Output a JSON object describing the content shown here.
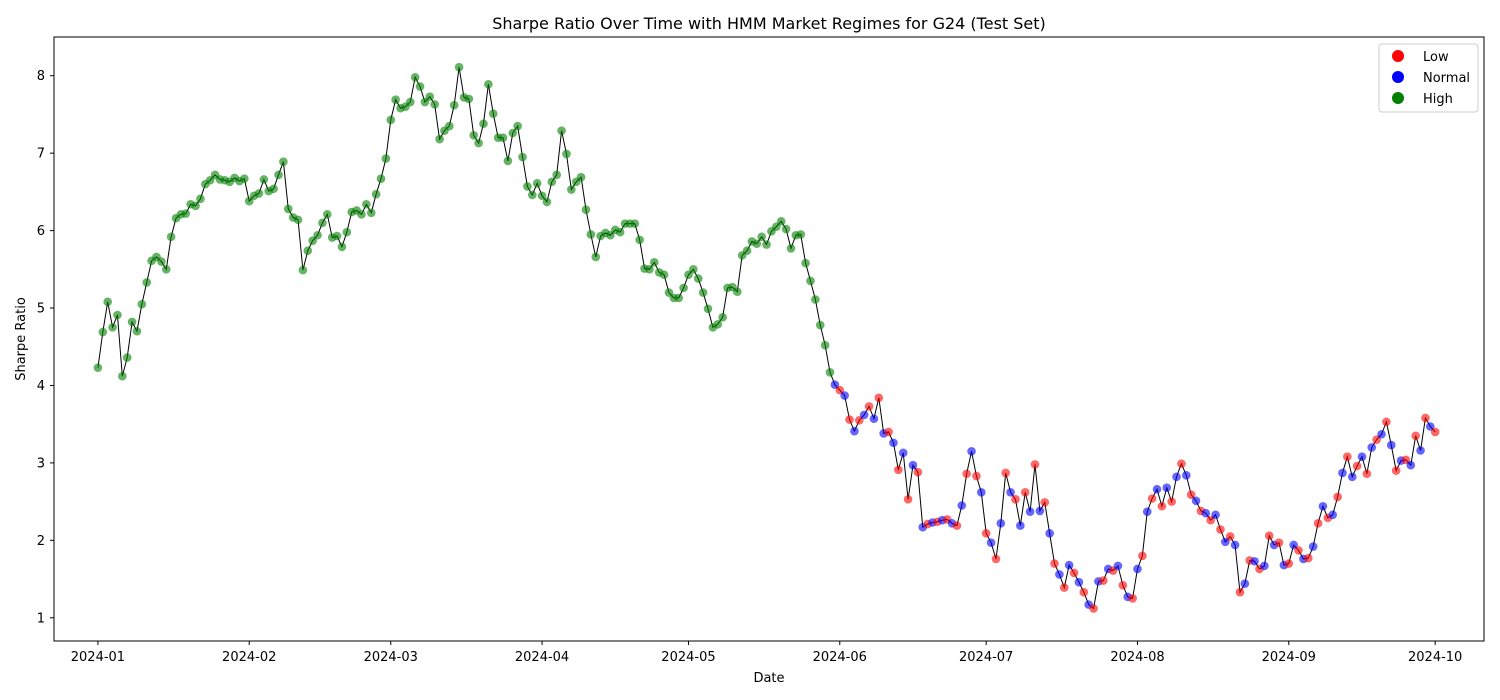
{
  "chart_data": {
    "type": "scatter",
    "title": "Sharpe Ratio Over Time with HMM Market Regimes for G24 (Test Set)",
    "xlabel": "Date",
    "ylabel": "Sharpe Ratio",
    "xlim": [
      "2023-12-23",
      "2024-10-11"
    ],
    "ylim": [
      0.7,
      8.5
    ],
    "xticks": [
      "2024-01",
      "2024-02",
      "2024-03",
      "2024-04",
      "2024-05",
      "2024-06",
      "2024-07",
      "2024-08",
      "2024-09",
      "2024-10"
    ],
    "yticks": [
      1,
      2,
      3,
      4,
      5,
      6,
      7,
      8
    ],
    "grid": false,
    "legend_position": "top-right",
    "legend": [
      {
        "label": "Low",
        "color": "#ff0000"
      },
      {
        "label": "Normal",
        "color": "#0000ff"
      },
      {
        "label": "High",
        "color": "#008000"
      }
    ],
    "line_color": "#000000",
    "regime_colors": {
      "L": "#ff0000",
      "N": "#0000ff",
      "H": "#008000"
    },
    "points": [
      [
        "2024-01-01",
        4.23,
        "H"
      ],
      [
        "2024-01-02",
        4.69,
        "H"
      ],
      [
        "2024-01-03",
        5.08,
        "H"
      ],
      [
        "2024-01-04",
        4.75,
        "H"
      ],
      [
        "2024-01-05",
        4.91,
        "H"
      ],
      [
        "2024-01-06",
        4.12,
        "H"
      ],
      [
        "2024-01-07",
        4.36,
        "H"
      ],
      [
        "2024-01-08",
        4.82,
        "H"
      ],
      [
        "2024-01-09",
        4.7,
        "H"
      ],
      [
        "2024-01-10",
        5.05,
        "H"
      ],
      [
        "2024-01-11",
        5.33,
        "H"
      ],
      [
        "2024-01-12",
        5.61,
        "H"
      ],
      [
        "2024-01-13",
        5.66,
        "H"
      ],
      [
        "2024-01-14",
        5.6,
        "H"
      ],
      [
        "2024-01-15",
        5.5,
        "H"
      ],
      [
        "2024-01-16",
        5.92,
        "H"
      ],
      [
        "2024-01-17",
        6.16,
        "H"
      ],
      [
        "2024-01-18",
        6.21,
        "H"
      ],
      [
        "2024-01-19",
        6.22,
        "H"
      ],
      [
        "2024-01-20",
        6.34,
        "H"
      ],
      [
        "2024-01-21",
        6.32,
        "H"
      ],
      [
        "2024-01-22",
        6.41,
        "H"
      ],
      [
        "2024-01-23",
        6.6,
        "H"
      ],
      [
        "2024-01-24",
        6.65,
        "H"
      ],
      [
        "2024-01-25",
        6.72,
        "H"
      ],
      [
        "2024-01-26",
        6.66,
        "H"
      ],
      [
        "2024-01-27",
        6.65,
        "H"
      ],
      [
        "2024-01-28",
        6.63,
        "H"
      ],
      [
        "2024-01-29",
        6.68,
        "H"
      ],
      [
        "2024-01-30",
        6.64,
        "H"
      ],
      [
        "2024-01-31",
        6.67,
        "H"
      ],
      [
        "2024-02-01",
        6.38,
        "H"
      ],
      [
        "2024-02-02",
        6.45,
        "H"
      ],
      [
        "2024-02-03",
        6.48,
        "H"
      ],
      [
        "2024-02-04",
        6.66,
        "H"
      ],
      [
        "2024-02-05",
        6.51,
        "H"
      ],
      [
        "2024-02-06",
        6.54,
        "H"
      ],
      [
        "2024-02-07",
        6.72,
        "H"
      ],
      [
        "2024-02-08",
        6.89,
        "H"
      ],
      [
        "2024-02-09",
        6.28,
        "H"
      ],
      [
        "2024-02-10",
        6.17,
        "H"
      ],
      [
        "2024-02-11",
        6.14,
        "H"
      ],
      [
        "2024-02-12",
        5.49,
        "H"
      ],
      [
        "2024-02-13",
        5.74,
        "H"
      ],
      [
        "2024-02-14",
        5.87,
        "H"
      ],
      [
        "2024-02-15",
        5.94,
        "H"
      ],
      [
        "2024-02-16",
        6.1,
        "H"
      ],
      [
        "2024-02-17",
        6.21,
        "H"
      ],
      [
        "2024-02-18",
        5.91,
        "H"
      ],
      [
        "2024-02-19",
        5.93,
        "H"
      ],
      [
        "2024-02-20",
        5.79,
        "H"
      ],
      [
        "2024-02-21",
        5.98,
        "H"
      ],
      [
        "2024-02-22",
        6.24,
        "H"
      ],
      [
        "2024-02-23",
        6.26,
        "H"
      ],
      [
        "2024-02-24",
        6.21,
        "H"
      ],
      [
        "2024-02-25",
        6.34,
        "H"
      ],
      [
        "2024-02-26",
        6.23,
        "H"
      ],
      [
        "2024-02-27",
        6.47,
        "H"
      ],
      [
        "2024-02-28",
        6.67,
        "H"
      ],
      [
        "2024-02-29",
        6.93,
        "H"
      ],
      [
        "2024-03-01",
        7.43,
        "H"
      ],
      [
        "2024-03-02",
        7.69,
        "H"
      ],
      [
        "2024-03-03",
        7.58,
        "H"
      ],
      [
        "2024-03-04",
        7.6,
        "H"
      ],
      [
        "2024-03-05",
        7.66,
        "H"
      ],
      [
        "2024-03-06",
        7.98,
        "H"
      ],
      [
        "2024-03-07",
        7.86,
        "H"
      ],
      [
        "2024-03-08",
        7.66,
        "H"
      ],
      [
        "2024-03-09",
        7.73,
        "H"
      ],
      [
        "2024-03-10",
        7.63,
        "H"
      ],
      [
        "2024-03-11",
        7.18,
        "H"
      ],
      [
        "2024-03-12",
        7.29,
        "H"
      ],
      [
        "2024-03-13",
        7.35,
        "H"
      ],
      [
        "2024-03-14",
        7.62,
        "H"
      ],
      [
        "2024-03-15",
        8.11,
        "H"
      ],
      [
        "2024-03-16",
        7.72,
        "H"
      ],
      [
        "2024-03-17",
        7.7,
        "H"
      ],
      [
        "2024-03-18",
        7.23,
        "H"
      ],
      [
        "2024-03-19",
        7.13,
        "H"
      ],
      [
        "2024-03-20",
        7.38,
        "H"
      ],
      [
        "2024-03-21",
        7.89,
        "H"
      ],
      [
        "2024-03-22",
        7.51,
        "H"
      ],
      [
        "2024-03-23",
        7.2,
        "H"
      ],
      [
        "2024-03-24",
        7.2,
        "H"
      ],
      [
        "2024-03-25",
        6.9,
        "H"
      ],
      [
        "2024-03-26",
        7.26,
        "H"
      ],
      [
        "2024-03-27",
        7.35,
        "H"
      ],
      [
        "2024-03-28",
        6.95,
        "H"
      ],
      [
        "2024-03-29",
        6.57,
        "H"
      ],
      [
        "2024-03-30",
        6.46,
        "H"
      ],
      [
        "2024-03-31",
        6.61,
        "H"
      ],
      [
        "2024-04-01",
        6.45,
        "H"
      ],
      [
        "2024-04-02",
        6.37,
        "H"
      ],
      [
        "2024-04-03",
        6.63,
        "H"
      ],
      [
        "2024-04-04",
        6.72,
        "H"
      ],
      [
        "2024-04-05",
        7.29,
        "H"
      ],
      [
        "2024-04-06",
        6.99,
        "H"
      ],
      [
        "2024-04-07",
        6.53,
        "H"
      ],
      [
        "2024-04-08",
        6.63,
        "H"
      ],
      [
        "2024-04-09",
        6.69,
        "H"
      ],
      [
        "2024-04-10",
        6.27,
        "H"
      ],
      [
        "2024-04-11",
        5.95,
        "H"
      ],
      [
        "2024-04-12",
        5.66,
        "H"
      ],
      [
        "2024-04-13",
        5.93,
        "H"
      ],
      [
        "2024-04-14",
        5.97,
        "H"
      ],
      [
        "2024-04-15",
        5.94,
        "H"
      ],
      [
        "2024-04-16",
        6.01,
        "H"
      ],
      [
        "2024-04-17",
        5.98,
        "H"
      ],
      [
        "2024-04-18",
        6.09,
        "H"
      ],
      [
        "2024-04-19",
        6.09,
        "H"
      ],
      [
        "2024-04-20",
        6.09,
        "H"
      ],
      [
        "2024-04-21",
        5.88,
        "H"
      ],
      [
        "2024-04-22",
        5.51,
        "H"
      ],
      [
        "2024-04-23",
        5.5,
        "H"
      ],
      [
        "2024-04-24",
        5.59,
        "H"
      ],
      [
        "2024-04-25",
        5.46,
        "H"
      ],
      [
        "2024-04-26",
        5.43,
        "H"
      ],
      [
        "2024-04-27",
        5.2,
        "H"
      ],
      [
        "2024-04-28",
        5.13,
        "H"
      ],
      [
        "2024-04-29",
        5.13,
        "H"
      ],
      [
        "2024-04-30",
        5.26,
        "H"
      ],
      [
        "2024-05-01",
        5.43,
        "H"
      ],
      [
        "2024-05-02",
        5.5,
        "H"
      ],
      [
        "2024-05-03",
        5.38,
        "H"
      ],
      [
        "2024-05-04",
        5.2,
        "H"
      ],
      [
        "2024-05-05",
        4.99,
        "H"
      ],
      [
        "2024-05-06",
        4.75,
        "H"
      ],
      [
        "2024-05-07",
        4.79,
        "H"
      ],
      [
        "2024-05-08",
        4.88,
        "H"
      ],
      [
        "2024-05-09",
        5.26,
        "H"
      ],
      [
        "2024-05-10",
        5.27,
        "H"
      ],
      [
        "2024-05-11",
        5.21,
        "H"
      ],
      [
        "2024-05-12",
        5.68,
        "H"
      ],
      [
        "2024-05-13",
        5.74,
        "H"
      ],
      [
        "2024-05-14",
        5.86,
        "H"
      ],
      [
        "2024-05-15",
        5.83,
        "H"
      ],
      [
        "2024-05-16",
        5.92,
        "H"
      ],
      [
        "2024-05-17",
        5.82,
        "H"
      ],
      [
        "2024-05-18",
        5.99,
        "H"
      ],
      [
        "2024-05-19",
        6.05,
        "H"
      ],
      [
        "2024-05-20",
        6.12,
        "H"
      ],
      [
        "2024-05-21",
        6.02,
        "H"
      ],
      [
        "2024-05-22",
        5.77,
        "H"
      ],
      [
        "2024-05-23",
        5.94,
        "H"
      ],
      [
        "2024-05-24",
        5.95,
        "H"
      ],
      [
        "2024-05-25",
        5.58,
        "H"
      ],
      [
        "2024-05-26",
        5.35,
        "H"
      ],
      [
        "2024-05-27",
        5.11,
        "H"
      ],
      [
        "2024-05-28",
        4.78,
        "H"
      ],
      [
        "2024-05-29",
        4.52,
        "H"
      ],
      [
        "2024-05-30",
        4.17,
        "H"
      ],
      [
        "2024-05-31",
        4.01,
        "N"
      ],
      [
        "2024-06-01",
        3.94,
        "L"
      ],
      [
        "2024-06-02",
        3.87,
        "N"
      ],
      [
        "2024-06-03",
        3.56,
        "L"
      ],
      [
        "2024-06-04",
        3.41,
        "N"
      ],
      [
        "2024-06-05",
        3.55,
        "L"
      ],
      [
        "2024-06-06",
        3.62,
        "N"
      ],
      [
        "2024-06-07",
        3.73,
        "L"
      ],
      [
        "2024-06-08",
        3.57,
        "N"
      ],
      [
        "2024-06-09",
        3.84,
        "L"
      ],
      [
        "2024-06-10",
        3.38,
        "N"
      ],
      [
        "2024-06-11",
        3.4,
        "L"
      ],
      [
        "2024-06-12",
        3.26,
        "N"
      ],
      [
        "2024-06-13",
        2.91,
        "L"
      ],
      [
        "2024-06-14",
        3.13,
        "N"
      ],
      [
        "2024-06-15",
        2.53,
        "L"
      ],
      [
        "2024-06-16",
        2.97,
        "N"
      ],
      [
        "2024-06-17",
        2.88,
        "L"
      ],
      [
        "2024-06-18",
        2.17,
        "N"
      ],
      [
        "2024-06-19",
        2.21,
        "L"
      ],
      [
        "2024-06-20",
        2.23,
        "N"
      ],
      [
        "2024-06-21",
        2.24,
        "L"
      ],
      [
        "2024-06-22",
        2.26,
        "N"
      ],
      [
        "2024-06-23",
        2.27,
        "L"
      ],
      [
        "2024-06-24",
        2.22,
        "N"
      ],
      [
        "2024-06-25",
        2.19,
        "L"
      ],
      [
        "2024-06-26",
        2.45,
        "N"
      ],
      [
        "2024-06-27",
        2.86,
        "L"
      ],
      [
        "2024-06-28",
        3.15,
        "N"
      ],
      [
        "2024-06-29",
        2.83,
        "L"
      ],
      [
        "2024-06-30",
        2.62,
        "N"
      ],
      [
        "2024-07-01",
        2.09,
        "L"
      ],
      [
        "2024-07-02",
        1.97,
        "N"
      ],
      [
        "2024-07-03",
        1.76,
        "L"
      ],
      [
        "2024-07-04",
        2.22,
        "N"
      ],
      [
        "2024-07-05",
        2.87,
        "L"
      ],
      [
        "2024-07-06",
        2.62,
        "N"
      ],
      [
        "2024-07-07",
        2.53,
        "L"
      ],
      [
        "2024-07-08",
        2.19,
        "N"
      ],
      [
        "2024-07-09",
        2.62,
        "L"
      ],
      [
        "2024-07-10",
        2.37,
        "N"
      ],
      [
        "2024-07-11",
        2.98,
        "L"
      ],
      [
        "2024-07-12",
        2.38,
        "N"
      ],
      [
        "2024-07-13",
        2.49,
        "L"
      ],
      [
        "2024-07-14",
        2.09,
        "N"
      ],
      [
        "2024-07-15",
        1.7,
        "L"
      ],
      [
        "2024-07-16",
        1.56,
        "N"
      ],
      [
        "2024-07-17",
        1.39,
        "L"
      ],
      [
        "2024-07-18",
        1.68,
        "N"
      ],
      [
        "2024-07-19",
        1.58,
        "L"
      ],
      [
        "2024-07-20",
        1.46,
        "N"
      ],
      [
        "2024-07-21",
        1.33,
        "L"
      ],
      [
        "2024-07-22",
        1.17,
        "N"
      ],
      [
        "2024-07-23",
        1.12,
        "L"
      ],
      [
        "2024-07-24",
        1.47,
        "N"
      ],
      [
        "2024-07-25",
        1.48,
        "L"
      ],
      [
        "2024-07-26",
        1.63,
        "N"
      ],
      [
        "2024-07-27",
        1.61,
        "L"
      ],
      [
        "2024-07-28",
        1.67,
        "N"
      ],
      [
        "2024-07-29",
        1.42,
        "L"
      ],
      [
        "2024-07-30",
        1.27,
        "N"
      ],
      [
        "2024-07-31",
        1.25,
        "L"
      ],
      [
        "2024-08-01",
        1.63,
        "N"
      ],
      [
        "2024-08-02",
        1.8,
        "L"
      ],
      [
        "2024-08-03",
        2.37,
        "N"
      ],
      [
        "2024-08-04",
        2.54,
        "L"
      ],
      [
        "2024-08-05",
        2.66,
        "N"
      ],
      [
        "2024-08-06",
        2.44,
        "L"
      ],
      [
        "2024-08-07",
        2.68,
        "N"
      ],
      [
        "2024-08-08",
        2.5,
        "L"
      ],
      [
        "2024-08-09",
        2.82,
        "N"
      ],
      [
        "2024-08-10",
        2.99,
        "L"
      ],
      [
        "2024-08-11",
        2.84,
        "N"
      ],
      [
        "2024-08-12",
        2.59,
        "L"
      ],
      [
        "2024-08-13",
        2.51,
        "N"
      ],
      [
        "2024-08-14",
        2.38,
        "L"
      ],
      [
        "2024-08-15",
        2.35,
        "N"
      ],
      [
        "2024-08-16",
        2.26,
        "L"
      ],
      [
        "2024-08-17",
        2.33,
        "N"
      ],
      [
        "2024-08-18",
        2.14,
        "L"
      ],
      [
        "2024-08-19",
        1.98,
        "N"
      ],
      [
        "2024-08-20",
        2.05,
        "L"
      ],
      [
        "2024-08-21",
        1.94,
        "N"
      ],
      [
        "2024-08-22",
        1.33,
        "L"
      ],
      [
        "2024-08-23",
        1.44,
        "N"
      ],
      [
        "2024-08-24",
        1.74,
        "L"
      ],
      [
        "2024-08-25",
        1.73,
        "N"
      ],
      [
        "2024-08-26",
        1.63,
        "L"
      ],
      [
        "2024-08-27",
        1.67,
        "N"
      ],
      [
        "2024-08-28",
        2.06,
        "L"
      ],
      [
        "2024-08-29",
        1.94,
        "N"
      ],
      [
        "2024-08-30",
        1.97,
        "L"
      ],
      [
        "2024-08-31",
        1.68,
        "N"
      ],
      [
        "2024-09-01",
        1.7,
        "L"
      ],
      [
        "2024-09-02",
        1.94,
        "N"
      ],
      [
        "2024-09-03",
        1.87,
        "L"
      ],
      [
        "2024-09-04",
        1.76,
        "N"
      ],
      [
        "2024-09-05",
        1.77,
        "L"
      ],
      [
        "2024-09-06",
        1.92,
        "N"
      ],
      [
        "2024-09-07",
        2.22,
        "L"
      ],
      [
        "2024-09-08",
        2.44,
        "N"
      ],
      [
        "2024-09-09",
        2.29,
        "L"
      ],
      [
        "2024-09-10",
        2.33,
        "N"
      ],
      [
        "2024-09-11",
        2.56,
        "L"
      ],
      [
        "2024-09-12",
        2.87,
        "N"
      ],
      [
        "2024-09-13",
        3.08,
        "L"
      ],
      [
        "2024-09-14",
        2.82,
        "N"
      ],
      [
        "2024-09-15",
        2.96,
        "L"
      ],
      [
        "2024-09-16",
        3.08,
        "N"
      ],
      [
        "2024-09-17",
        2.86,
        "L"
      ],
      [
        "2024-09-18",
        3.2,
        "N"
      ],
      [
        "2024-09-19",
        3.3,
        "L"
      ],
      [
        "2024-09-20",
        3.37,
        "N"
      ],
      [
        "2024-09-21",
        3.53,
        "L"
      ],
      [
        "2024-09-22",
        3.23,
        "N"
      ],
      [
        "2024-09-23",
        2.9,
        "L"
      ],
      [
        "2024-09-24",
        3.03,
        "N"
      ],
      [
        "2024-09-25",
        3.04,
        "L"
      ],
      [
        "2024-09-26",
        2.97,
        "N"
      ],
      [
        "2024-09-27",
        3.35,
        "L"
      ],
      [
        "2024-09-28",
        3.16,
        "N"
      ],
      [
        "2024-09-29",
        3.58,
        "L"
      ],
      [
        "2024-09-30",
        3.47,
        "N"
      ],
      [
        "2024-10-01",
        3.4,
        "L"
      ]
    ]
  }
}
